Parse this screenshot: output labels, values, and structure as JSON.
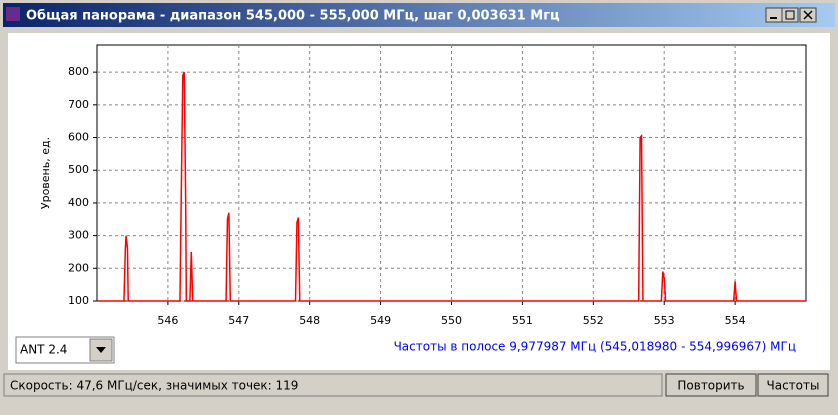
{
  "window": {
    "title": "Общая панорама - диапазон 545,000 - 555,000 МГц, шаг 0,003631 Мгц"
  },
  "chart_data": {
    "type": "line",
    "y_label": "Уровень, ед.",
    "x": [
      545.0,
      545.38,
      545.4,
      545.41,
      545.43,
      545.44,
      546.17,
      546.19,
      546.21,
      546.23,
      546.25,
      546.26,
      546.31,
      546.33,
      546.35,
      546.82,
      546.84,
      546.86,
      546.88,
      547.8,
      547.82,
      547.84,
      547.86,
      552.64,
      552.66,
      552.68,
      552.7,
      552.96,
      552.98,
      553.0,
      553.02,
      553.98,
      554.0,
      554.02,
      555.0
    ],
    "series": [
      {
        "color": "#ff0000",
        "values": [
          100,
          100,
          260,
          300,
          260,
          100,
          100,
          450,
          790,
          800,
          420,
          100,
          100,
          250,
          100,
          100,
          350,
          370,
          100,
          100,
          340,
          355,
          100,
          100,
          600,
          605,
          100,
          100,
          190,
          170,
          100,
          100,
          160,
          100,
          100
        ]
      }
    ],
    "xlim": [
      545,
      555
    ],
    "ylim": [
      100,
      883
    ],
    "xticks": [
      546,
      547,
      548,
      549,
      550,
      551,
      552,
      553,
      554
    ],
    "yticks": [
      100,
      200,
      300,
      400,
      500,
      600,
      700,
      800
    ],
    "grid": true
  },
  "controls": {
    "antenna": "ANT 2.4",
    "band_info": "Частоты в полосе 9,977987 МГц (545,018980 - 554,996967) МГц",
    "status": "Скорость: 47,6 МГц/сек, значимых точек: 119",
    "repeat_button": "Повторить",
    "freq_button": "Частоты"
  }
}
